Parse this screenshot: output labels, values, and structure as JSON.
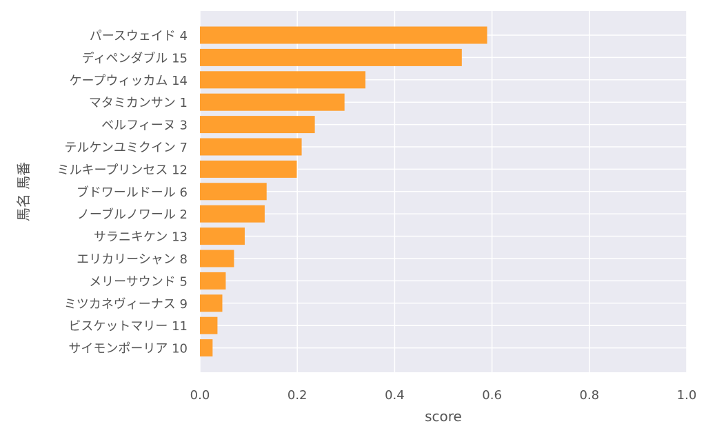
{
  "chart_data": {
    "type": "bar",
    "orientation": "horizontal",
    "title": "",
    "xlabel": "score",
    "ylabel": "馬名 馬番",
    "xlim": [
      0.0,
      1.0
    ],
    "xticks": [
      "0.0",
      "0.2",
      "0.4",
      "0.6",
      "0.8",
      "1.0"
    ],
    "grid": true,
    "legend": "none",
    "colors": {
      "bar": "#ff9f2e",
      "plot_background": "#eaeaf2",
      "grid": "#ffffff",
      "text": "#555555"
    },
    "categories": [
      "パースウェイド 4",
      "ディペンダブル 15",
      "ケープウィッカム 14",
      "マタミカンサン 1",
      "ベルフィーヌ 3",
      "テルケンユミクイン 7",
      "ミルキープリンセス 12",
      "ブドワールドール 6",
      "ノーブルノワール 2",
      "サラニキケン 13",
      "エリカリーシャン 8",
      "メリーサウンド 5",
      "ミツカネヴィーナス 9",
      "ビスケットマリー 11",
      "サイモンポーリア 10"
    ],
    "values": [
      0.59,
      0.538,
      0.34,
      0.297,
      0.236,
      0.209,
      0.199,
      0.137,
      0.133,
      0.092,
      0.07,
      0.053,
      0.046,
      0.036,
      0.026
    ]
  }
}
